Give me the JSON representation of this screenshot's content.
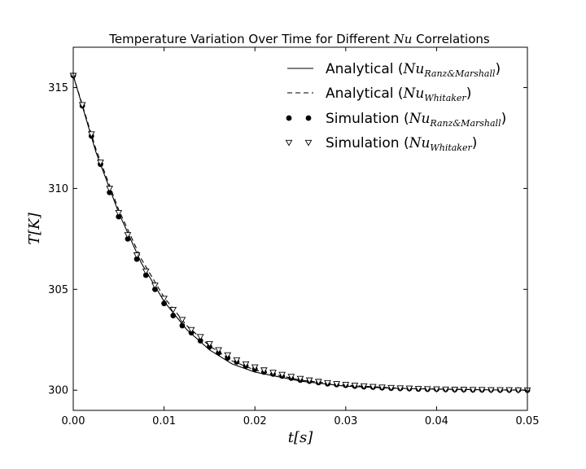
{
  "chart_data": {
    "type": "line",
    "title_prefix": "Temperature Variation Over Time for Different ",
    "title_math": "Nu",
    "title_suffix": " Correlations",
    "xlabel": "t[s]",
    "ylabel": "T[K]",
    "xlim": [
      0.0,
      0.05
    ],
    "ylim": [
      299.0,
      317.0
    ],
    "xticks": [
      0.0,
      0.01,
      0.02,
      0.03,
      0.04,
      0.05
    ],
    "xtick_labels": [
      "0.00",
      "0.01",
      "0.02",
      "0.03",
      "0.04",
      "0.05"
    ],
    "yticks": [
      300,
      305,
      310,
      315
    ],
    "ytick_labels": [
      "300",
      "305",
      "310",
      "315"
    ],
    "grid": false,
    "legend_position": "top-right",
    "series": [
      {
        "label_text": "Analytical (",
        "label_math": "Nu",
        "label_sub": "Ranz&Marshall",
        "label_close": ")",
        "style": "solid-line",
        "x": [
          0.0,
          0.0025,
          0.005,
          0.0075,
          0.01,
          0.0125,
          0.015,
          0.0175,
          0.02,
          0.025,
          0.03,
          0.035,
          0.04,
          0.045,
          0.05
        ],
        "y": [
          315.6,
          311.8,
          308.8,
          306.3,
          304.4,
          303.0,
          302.0,
          301.3,
          300.9,
          300.45,
          300.2,
          300.1,
          300.05,
          300.02,
          300.0
        ]
      },
      {
        "label_text": "Analytical (",
        "label_math": "Nu",
        "label_sub": "Whitaker",
        "label_close": ")",
        "style": "dashed-line",
        "x": [
          0.0,
          0.0025,
          0.005,
          0.0075,
          0.01,
          0.0125,
          0.015,
          0.0175,
          0.02,
          0.025,
          0.03,
          0.035,
          0.04,
          0.045,
          0.05
        ],
        "y": [
          315.6,
          311.95,
          308.95,
          306.5,
          304.6,
          303.2,
          302.2,
          301.45,
          301.0,
          300.5,
          300.25,
          300.12,
          300.06,
          300.03,
          300.01
        ]
      },
      {
        "label_text": "Simulation (",
        "label_math": "Nu",
        "label_sub": "Ranz&Marshall",
        "label_close": ")",
        "style": "filled-circle",
        "x": [
          0.0,
          0.001,
          0.002,
          0.003,
          0.004,
          0.005,
          0.006,
          0.007,
          0.008,
          0.009,
          0.01,
          0.011,
          0.012,
          0.013,
          0.014,
          0.015,
          0.016,
          0.017,
          0.018,
          0.019,
          0.02,
          0.021,
          0.022,
          0.023,
          0.024,
          0.025,
          0.026,
          0.027,
          0.028,
          0.029,
          0.03,
          0.031,
          0.032,
          0.033,
          0.034,
          0.035,
          0.036,
          0.037,
          0.038,
          0.039,
          0.04,
          0.041,
          0.042,
          0.043,
          0.044,
          0.045,
          0.046,
          0.047,
          0.048,
          0.049,
          0.05
        ],
        "y": [
          315.6,
          314.1,
          312.6,
          311.2,
          309.8,
          308.6,
          307.5,
          306.5,
          305.7,
          305.0,
          304.3,
          303.7,
          303.2,
          302.85,
          302.45,
          302.15,
          301.85,
          301.6,
          301.4,
          301.2,
          301.05,
          300.9,
          300.8,
          300.7,
          300.6,
          300.5,
          300.45,
          300.38,
          300.32,
          300.28,
          300.24,
          300.2,
          300.17,
          300.15,
          300.12,
          300.1,
          300.09,
          300.08,
          300.06,
          300.05,
          300.05,
          300.04,
          300.03,
          300.03,
          300.02,
          300.02,
          300.02,
          300.01,
          300.01,
          300.01,
          300.0
        ]
      },
      {
        "label_text": "Simulation (",
        "label_math": "Nu",
        "label_sub": "Whitaker",
        "label_close": ")",
        "style": "open-triangle",
        "x": [
          0.0,
          0.001,
          0.002,
          0.003,
          0.004,
          0.005,
          0.006,
          0.007,
          0.008,
          0.009,
          0.01,
          0.011,
          0.012,
          0.013,
          0.014,
          0.015,
          0.016,
          0.017,
          0.018,
          0.019,
          0.02,
          0.021,
          0.022,
          0.023,
          0.024,
          0.025,
          0.026,
          0.027,
          0.028,
          0.029,
          0.03,
          0.031,
          0.032,
          0.033,
          0.034,
          0.035,
          0.036,
          0.037,
          0.038,
          0.039,
          0.04,
          0.041,
          0.042,
          0.043,
          0.044,
          0.045,
          0.046,
          0.047,
          0.048,
          0.049,
          0.05
        ],
        "y": [
          315.6,
          314.15,
          312.7,
          311.3,
          310.0,
          308.8,
          307.7,
          306.7,
          305.9,
          305.2,
          304.55,
          304.0,
          303.5,
          303.0,
          302.65,
          302.3,
          302.0,
          301.75,
          301.5,
          301.3,
          301.15,
          301.0,
          300.88,
          300.78,
          300.68,
          300.58,
          300.5,
          300.43,
          300.37,
          300.32,
          300.28,
          300.24,
          300.21,
          300.18,
          300.15,
          300.13,
          300.11,
          300.1,
          300.08,
          300.07,
          300.06,
          300.05,
          300.04,
          300.04,
          300.03,
          300.03,
          300.02,
          300.02,
          300.02,
          300.01,
          300.01
        ]
      }
    ]
  }
}
